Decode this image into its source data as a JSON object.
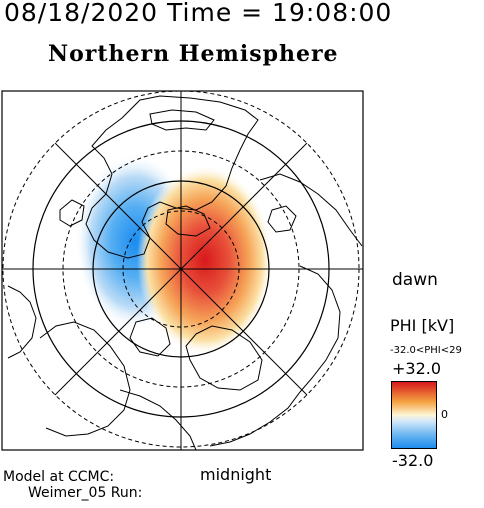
{
  "header": {
    "datetime": "08/18/2020 Time = 19:08:00",
    "hemisphere": "Northern Hemisphere"
  },
  "map": {
    "dawn_label": "dawn",
    "midnight_label": "midnight",
    "cells": [
      "dusk-side negative potential cell (blue)",
      "dawn-side positive potential cell (red)"
    ]
  },
  "colorbar": {
    "quantity_label": "PHI [kV]",
    "range_label": "-32.0<PHI<29",
    "max_label": "+32.0",
    "zero_label": "0",
    "min_label": "-32.0",
    "colors": {
      "positive": "#d7191c",
      "neutral": "#fdf5d6",
      "negative": "#1e8cf0"
    }
  },
  "footer": {
    "model_line1": "Model at CCMC:",
    "model_line2": "Weimer_05 Run:"
  }
}
